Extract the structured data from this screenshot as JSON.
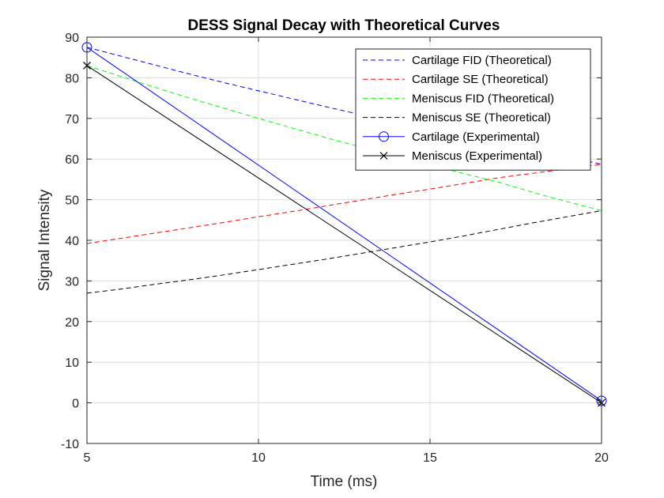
{
  "chart_data": {
    "type": "line",
    "title": "DESS Signal Decay with Theoretical Curves",
    "xlabel": "Time (ms)",
    "ylabel": "Signal Intensity",
    "xlim": [
      5,
      20
    ],
    "ylim": [
      -10,
      90
    ],
    "xticks": [
      5,
      10,
      15,
      20
    ],
    "yticks": [
      -10,
      0,
      10,
      20,
      30,
      40,
      50,
      60,
      70,
      80,
      90
    ],
    "grid": true,
    "legend_position": "top-right",
    "x": [
      5,
      6,
      7,
      8,
      9,
      10,
      11,
      12,
      13,
      14,
      15,
      16,
      17,
      18,
      19,
      20
    ],
    "series": [
      {
        "name": "Cartilage FID (Theoretical)",
        "style": "dashed",
        "color": "#0000ff",
        "values": [
          87.5,
          85.3,
          83.1,
          80.9,
          78.8,
          76.8,
          74.8,
          72.8,
          70.9,
          69.1,
          67.3,
          65.6,
          63.9,
          62.2,
          60.6,
          58.7
        ]
      },
      {
        "name": "Cartilage SE (Theoretical)",
        "style": "dashed",
        "color": "#ff0000",
        "values": [
          39.2,
          40.5,
          41.8,
          43.1,
          44.4,
          45.8,
          47.1,
          48.5,
          49.9,
          51.3,
          52.6,
          54.0,
          55.4,
          56.5,
          57.6,
          58.7
        ]
      },
      {
        "name": "Meniscus FID (Theoretical)",
        "style": "dashed",
        "color": "#00ff00",
        "values": [
          83.0,
          80.3,
          77.6,
          75.0,
          72.5,
          70.0,
          67.6,
          65.2,
          62.9,
          60.7,
          58.5,
          56.4,
          54.3,
          51.8,
          49.5,
          47.3
        ]
      },
      {
        "name": "Meniscus SE (Theoretical)",
        "style": "dashed",
        "color": "#000000",
        "values": [
          27.0,
          28.0,
          29.2,
          30.3,
          31.5,
          32.8,
          34.1,
          35.4,
          36.8,
          38.2,
          39.6,
          41.1,
          42.7,
          44.3,
          45.8,
          47.3
        ]
      },
      {
        "name": "Cartilage (Experimental)",
        "style": "solid",
        "marker": "o",
        "color": "#0000ff",
        "x": [
          5,
          20
        ],
        "values": [
          87.5,
          0.5
        ]
      },
      {
        "name": "Meniscus (Experimental)",
        "style": "solid",
        "marker": "x",
        "color": "#000000",
        "x": [
          5,
          20
        ],
        "values": [
          83.0,
          0.0
        ]
      }
    ]
  }
}
